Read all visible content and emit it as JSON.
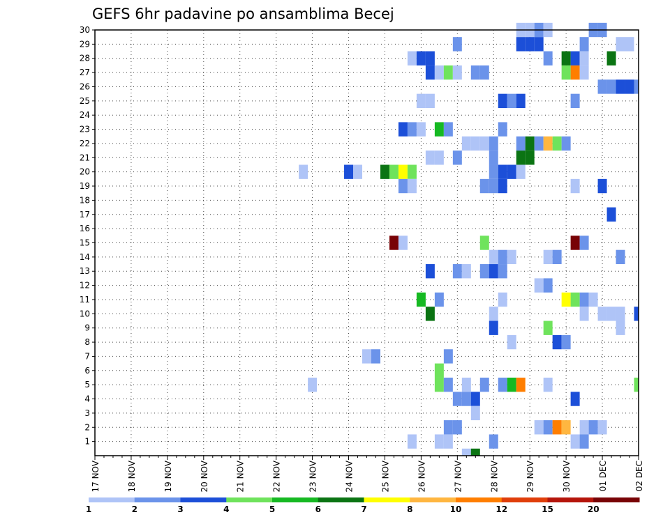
{
  "chart_data": {
    "type": "heatmap",
    "title": "GEFS 6hr padavine po ansamblima Becej",
    "xlabel": "",
    "ylabel": "",
    "x_tick_labels": [
      "17 NOV",
      "18 NOV",
      "19 NOV",
      "20 NOV",
      "21 NOV",
      "22 NOV",
      "23 NOV",
      "24 NOV",
      "25 NOV",
      "26 NOV",
      "27 NOV",
      "28 NOV",
      "29 NOV",
      "30 NOV",
      "01 DEC",
      "02 DEC"
    ],
    "y_tick_labels": [
      "1",
      "2",
      "3",
      "4",
      "5",
      "6",
      "7",
      "8",
      "9",
      "10",
      "11",
      "12",
      "13",
      "14",
      "15",
      "16",
      "17",
      "18",
      "19",
      "20",
      "21",
      "22",
      "23",
      "24",
      "25",
      "26",
      "27",
      "28",
      "29",
      "30"
    ],
    "x_step": "6hr",
    "xlim_steps": [
      0,
      60
    ],
    "ylim": [
      0,
      30
    ],
    "grid": true,
    "colorbar": {
      "position": "bottom",
      "labels": [
        "1",
        "2",
        "3",
        "4",
        "5",
        "6",
        "7",
        "8",
        "10",
        "12",
        "15",
        "20"
      ],
      "colors": [
        "#afc4f7",
        "#6b93ea",
        "#1c4fd8",
        "#6fe35c",
        "#16b922",
        "#0b7413",
        "#ffff00",
        "#ffb640",
        "#ff7e00",
        "#e03e0a",
        "#b5150b",
        "#780306"
      ]
    },
    "cells": [
      {
        "member": 30,
        "step": 47,
        "level": 1
      },
      {
        "member": 30,
        "step": 48,
        "level": 1
      },
      {
        "member": 30,
        "step": 49,
        "level": 2
      },
      {
        "member": 30,
        "step": 50,
        "level": 1
      },
      {
        "member": 30,
        "step": 55,
        "level": 2
      },
      {
        "member": 30,
        "step": 56,
        "level": 2
      },
      {
        "member": 29,
        "step": 40,
        "level": 2
      },
      {
        "member": 29,
        "step": 47,
        "level": 3
      },
      {
        "member": 29,
        "step": 48,
        "level": 3
      },
      {
        "member": 29,
        "step": 49,
        "level": 3
      },
      {
        "member": 29,
        "step": 54,
        "level": 2
      },
      {
        "member": 29,
        "step": 58,
        "level": 1
      },
      {
        "member": 29,
        "step": 59,
        "level": 1
      },
      {
        "member": 28,
        "step": 35,
        "level": 1
      },
      {
        "member": 28,
        "step": 36,
        "level": 3
      },
      {
        "member": 28,
        "step": 37,
        "level": 3
      },
      {
        "member": 28,
        "step": 50,
        "level": 2
      },
      {
        "member": 28,
        "step": 52,
        "level": 6
      },
      {
        "member": 28,
        "step": 53,
        "level": 3
      },
      {
        "member": 28,
        "step": 54,
        "level": 1
      },
      {
        "member": 28,
        "step": 57,
        "level": 6
      },
      {
        "member": 27,
        "step": 37,
        "level": 3
      },
      {
        "member": 27,
        "step": 38,
        "level": 1
      },
      {
        "member": 27,
        "step": 39,
        "level": 4
      },
      {
        "member": 27,
        "step": 40,
        "level": 1
      },
      {
        "member": 27,
        "step": 42,
        "level": 2
      },
      {
        "member": 27,
        "step": 43,
        "level": 2
      },
      {
        "member": 27,
        "step": 52,
        "level": 4
      },
      {
        "member": 27,
        "step": 53,
        "level": 9
      },
      {
        "member": 27,
        "step": 54,
        "level": 1
      },
      {
        "member": 26,
        "step": 56,
        "level": 2
      },
      {
        "member": 26,
        "step": 57,
        "level": 2
      },
      {
        "member": 26,
        "step": 58,
        "level": 3
      },
      {
        "member": 26,
        "step": 59,
        "level": 3
      },
      {
        "member": 26,
        "step": 60,
        "level": 2
      },
      {
        "member": 25,
        "step": 36,
        "level": 1
      },
      {
        "member": 25,
        "step": 37,
        "level": 1
      },
      {
        "member": 25,
        "step": 45,
        "level": 3
      },
      {
        "member": 25,
        "step": 46,
        "level": 2
      },
      {
        "member": 25,
        "step": 47,
        "level": 3
      },
      {
        "member": 25,
        "step": 53,
        "level": 2
      },
      {
        "member": 23,
        "step": 34,
        "level": 3
      },
      {
        "member": 23,
        "step": 35,
        "level": 2
      },
      {
        "member": 23,
        "step": 36,
        "level": 1
      },
      {
        "member": 23,
        "step": 38,
        "level": 5
      },
      {
        "member": 23,
        "step": 39,
        "level": 2
      },
      {
        "member": 23,
        "step": 45,
        "level": 2
      },
      {
        "member": 22,
        "step": 41,
        "level": 1
      },
      {
        "member": 22,
        "step": 42,
        "level": 1
      },
      {
        "member": 22,
        "step": 43,
        "level": 1
      },
      {
        "member": 22,
        "step": 44,
        "level": 2
      },
      {
        "member": 22,
        "step": 47,
        "level": 2
      },
      {
        "member": 22,
        "step": 48,
        "level": 6
      },
      {
        "member": 22,
        "step": 49,
        "level": 2
      },
      {
        "member": 22,
        "step": 50,
        "level": 8
      },
      {
        "member": 22,
        "step": 51,
        "level": 4
      },
      {
        "member": 22,
        "step": 52,
        "level": 2
      },
      {
        "member": 21,
        "step": 37,
        "level": 1
      },
      {
        "member": 21,
        "step": 38,
        "level": 1
      },
      {
        "member": 21,
        "step": 40,
        "level": 2
      },
      {
        "member": 21,
        "step": 44,
        "level": 2
      },
      {
        "member": 21,
        "step": 47,
        "level": 6
      },
      {
        "member": 21,
        "step": 48,
        "level": 6
      },
      {
        "member": 20,
        "step": 23,
        "level": 1
      },
      {
        "member": 20,
        "step": 28,
        "level": 3
      },
      {
        "member": 20,
        "step": 29,
        "level": 1
      },
      {
        "member": 20,
        "step": 32,
        "level": 6
      },
      {
        "member": 20,
        "step": 33,
        "level": 4
      },
      {
        "member": 20,
        "step": 34,
        "level": 7
      },
      {
        "member": 20,
        "step": 35,
        "level": 4
      },
      {
        "member": 20,
        "step": 44,
        "level": 2
      },
      {
        "member": 20,
        "step": 45,
        "level": 3
      },
      {
        "member": 20,
        "step": 46,
        "level": 3
      },
      {
        "member": 20,
        "step": 47,
        "level": 1
      },
      {
        "member": 19,
        "step": 34,
        "level": 2
      },
      {
        "member": 19,
        "step": 35,
        "level": 1
      },
      {
        "member": 19,
        "step": 43,
        "level": 2
      },
      {
        "member": 19,
        "step": 44,
        "level": 2
      },
      {
        "member": 19,
        "step": 45,
        "level": 3
      },
      {
        "member": 19,
        "step": 53,
        "level": 1
      },
      {
        "member": 19,
        "step": 56,
        "level": 3
      },
      {
        "member": 17,
        "step": 57,
        "level": 3
      },
      {
        "member": 15,
        "step": 33,
        "level": 12
      },
      {
        "member": 15,
        "step": 34,
        "level": 1
      },
      {
        "member": 15,
        "step": 43,
        "level": 4
      },
      {
        "member": 15,
        "step": 53,
        "level": 12
      },
      {
        "member": 15,
        "step": 54,
        "level": 2
      },
      {
        "member": 14,
        "step": 44,
        "level": 1
      },
      {
        "member": 14,
        "step": 45,
        "level": 2
      },
      {
        "member": 14,
        "step": 46,
        "level": 1
      },
      {
        "member": 14,
        "step": 50,
        "level": 1
      },
      {
        "member": 14,
        "step": 51,
        "level": 2
      },
      {
        "member": 14,
        "step": 58,
        "level": 2
      },
      {
        "member": 13,
        "step": 37,
        "level": 3
      },
      {
        "member": 13,
        "step": 40,
        "level": 2
      },
      {
        "member": 13,
        "step": 41,
        "level": 1
      },
      {
        "member": 13,
        "step": 43,
        "level": 2
      },
      {
        "member": 13,
        "step": 44,
        "level": 3
      },
      {
        "member": 13,
        "step": 45,
        "level": 2
      },
      {
        "member": 12,
        "step": 49,
        "level": 1
      },
      {
        "member": 12,
        "step": 50,
        "level": 2
      },
      {
        "member": 11,
        "step": 36,
        "level": 5
      },
      {
        "member": 11,
        "step": 38,
        "level": 2
      },
      {
        "member": 11,
        "step": 45,
        "level": 1
      },
      {
        "member": 11,
        "step": 52,
        "level": 7
      },
      {
        "member": 11,
        "step": 53,
        "level": 4
      },
      {
        "member": 11,
        "step": 54,
        "level": 2
      },
      {
        "member": 11,
        "step": 55,
        "level": 1
      },
      {
        "member": 10,
        "step": 37,
        "level": 6
      },
      {
        "member": 10,
        "step": 44,
        "level": 1
      },
      {
        "member": 10,
        "step": 54,
        "level": 1
      },
      {
        "member": 10,
        "step": 56,
        "level": 1
      },
      {
        "member": 10,
        "step": 57,
        "level": 1
      },
      {
        "member": 10,
        "step": 58,
        "level": 1
      },
      {
        "member": 10,
        "step": 60,
        "level": 3
      },
      {
        "member": 9,
        "step": 44,
        "level": 3
      },
      {
        "member": 9,
        "step": 50,
        "level": 4
      },
      {
        "member": 9,
        "step": 58,
        "level": 1
      },
      {
        "member": 8,
        "step": 46,
        "level": 1
      },
      {
        "member": 8,
        "step": 51,
        "level": 3
      },
      {
        "member": 8,
        "step": 52,
        "level": 2
      },
      {
        "member": 7,
        "step": 30,
        "level": 1
      },
      {
        "member": 7,
        "step": 31,
        "level": 2
      },
      {
        "member": 7,
        "step": 39,
        "level": 2
      },
      {
        "member": 6,
        "step": 38,
        "level": 4
      },
      {
        "member": 5,
        "step": 24,
        "level": 1
      },
      {
        "member": 5,
        "step": 38,
        "level": 4
      },
      {
        "member": 5,
        "step": 39,
        "level": 2
      },
      {
        "member": 5,
        "step": 41,
        "level": 1
      },
      {
        "member": 5,
        "step": 43,
        "level": 2
      },
      {
        "member": 5,
        "step": 45,
        "level": 2
      },
      {
        "member": 5,
        "step": 46,
        "level": 5
      },
      {
        "member": 5,
        "step": 47,
        "level": 9
      },
      {
        "member": 5,
        "step": 50,
        "level": 1
      },
      {
        "member": 5,
        "step": 60,
        "level": 4
      },
      {
        "member": 4,
        "step": 40,
        "level": 2
      },
      {
        "member": 4,
        "step": 41,
        "level": 2
      },
      {
        "member": 4,
        "step": 42,
        "level": 3
      },
      {
        "member": 4,
        "step": 53,
        "level": 3
      },
      {
        "member": 3,
        "step": 42,
        "level": 1
      },
      {
        "member": 2,
        "step": 39,
        "level": 2
      },
      {
        "member": 2,
        "step": 40,
        "level": 2
      },
      {
        "member": 2,
        "step": 49,
        "level": 1
      },
      {
        "member": 2,
        "step": 50,
        "level": 2
      },
      {
        "member": 2,
        "step": 51,
        "level": 9
      },
      {
        "member": 2,
        "step": 52,
        "level": 8
      },
      {
        "member": 2,
        "step": 54,
        "level": 1
      },
      {
        "member": 2,
        "step": 55,
        "level": 2
      },
      {
        "member": 2,
        "step": 56,
        "level": 1
      },
      {
        "member": 1,
        "step": 35,
        "level": 1
      },
      {
        "member": 1,
        "step": 38,
        "level": 1
      },
      {
        "member": 1,
        "step": 39,
        "level": 1
      },
      {
        "member": 1,
        "step": 44,
        "level": 2
      },
      {
        "member": 1,
        "step": 53,
        "level": 1
      },
      {
        "member": 1,
        "step": 54,
        "level": 2
      },
      {
        "member": 0,
        "step": 41,
        "level": 1
      },
      {
        "member": 0,
        "step": 42,
        "level": 6
      }
    ]
  }
}
